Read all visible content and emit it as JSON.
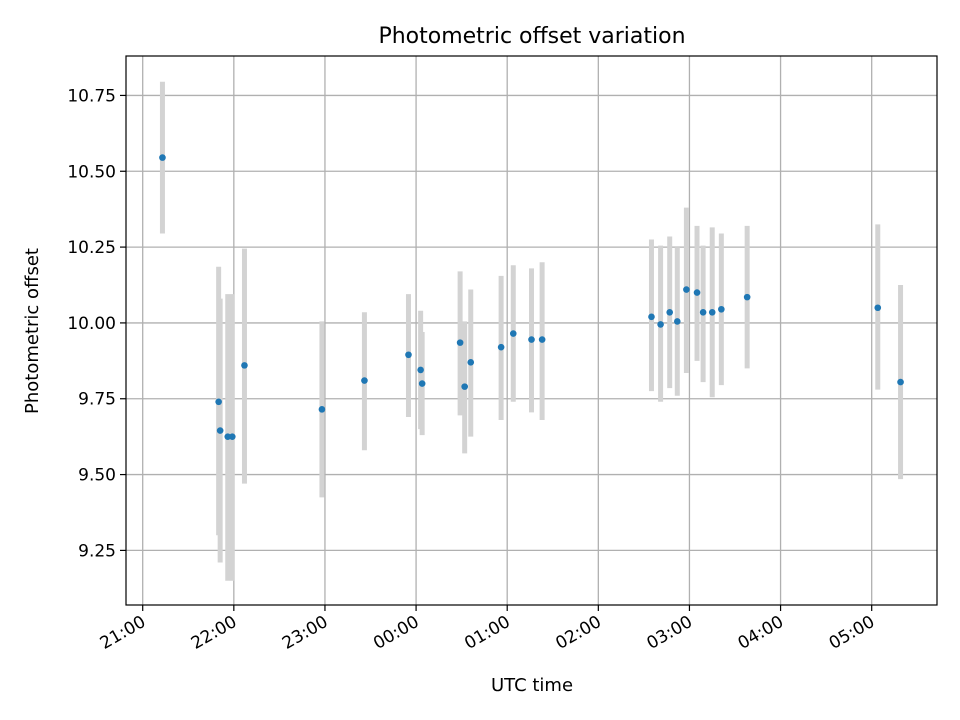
{
  "chart_data": {
    "type": "scatter",
    "title": "Photometric offset variation",
    "xlabel": "UTC time",
    "ylabel": "Photometric offset",
    "x_tick_labels": [
      "21:00",
      "22:00",
      "23:00",
      "00:00",
      "01:00",
      "02:00",
      "03:00",
      "04:00",
      "05:00"
    ],
    "y_tick_labels": [
      "9.25",
      "9.50",
      "9.75",
      "10.00",
      "10.25",
      "10.50",
      "10.75"
    ],
    "y_ticks": [
      9.25,
      9.5,
      9.75,
      10.0,
      10.25,
      10.5,
      10.75
    ],
    "xlim": [
      "20:49",
      "05:43"
    ],
    "ylim": [
      9.07,
      10.88
    ],
    "grid": true,
    "colors": {
      "points": "#1f77b4",
      "error_bars": "#d3d3d3"
    },
    "series": [
      {
        "points": [
          {
            "x": "21:13",
            "y": 10.545,
            "low": 10.295,
            "high": 10.795
          },
          {
            "x": "21:50",
            "y": 9.74,
            "low": 9.3,
            "high": 10.185
          },
          {
            "x": "21:51",
            "y": 9.645,
            "low": 9.21,
            "high": 10.08
          },
          {
            "x": "21:56",
            "y": 9.625,
            "low": 9.15,
            "high": 10.095
          },
          {
            "x": "21:59",
            "y": 9.625,
            "low": 9.15,
            "high": 10.095
          },
          {
            "x": "22:07",
            "y": 9.86,
            "low": 9.47,
            "high": 10.245
          },
          {
            "x": "22:58",
            "y": 9.715,
            "low": 9.425,
            "high": 10.005
          },
          {
            "x": "23:26",
            "y": 9.81,
            "low": 9.58,
            "high": 10.035
          },
          {
            "x": "23:55",
            "y": 9.895,
            "low": 9.69,
            "high": 10.095
          },
          {
            "x": "00:03",
            "y": 9.845,
            "low": 9.65,
            "high": 10.04
          },
          {
            "x": "00:04",
            "y": 9.8,
            "low": 9.63,
            "high": 9.97
          },
          {
            "x": "00:29",
            "y": 9.935,
            "low": 9.695,
            "high": 10.17
          },
          {
            "x": "00:32",
            "y": 9.79,
            "low": 9.57,
            "high": 10.005
          },
          {
            "x": "00:36",
            "y": 9.87,
            "low": 9.625,
            "high": 10.11
          },
          {
            "x": "00:56",
            "y": 9.92,
            "low": 9.68,
            "high": 10.155
          },
          {
            "x": "01:04",
            "y": 9.965,
            "low": 9.74,
            "high": 10.19
          },
          {
            "x": "01:16",
            "y": 9.945,
            "low": 9.705,
            "high": 10.18
          },
          {
            "x": "01:23",
            "y": 9.945,
            "low": 9.68,
            "high": 10.2
          },
          {
            "x": "02:35",
            "y": 10.02,
            "low": 9.775,
            "high": 10.275
          },
          {
            "x": "02:41",
            "y": 9.995,
            "low": 9.74,
            "high": 10.255
          },
          {
            "x": "02:47",
            "y": 10.035,
            "low": 9.785,
            "high": 10.285
          },
          {
            "x": "02:52",
            "y": 10.005,
            "low": 9.76,
            "high": 10.25
          },
          {
            "x": "02:58",
            "y": 10.11,
            "low": 9.835,
            "high": 10.38
          },
          {
            "x": "03:05",
            "y": 10.1,
            "low": 9.875,
            "high": 10.32
          },
          {
            "x": "03:09",
            "y": 10.035,
            "low": 9.805,
            "high": 10.255
          },
          {
            "x": "03:15",
            "y": 10.035,
            "low": 9.755,
            "high": 10.315
          },
          {
            "x": "03:21",
            "y": 10.045,
            "low": 9.795,
            "high": 10.295
          },
          {
            "x": "03:38",
            "y": 10.085,
            "low": 9.85,
            "high": 10.32
          },
          {
            "x": "05:04",
            "y": 10.05,
            "low": 9.78,
            "high": 10.325
          },
          {
            "x": "05:19",
            "y": 9.805,
            "low": 9.485,
            "high": 10.125
          }
        ]
      }
    ]
  }
}
